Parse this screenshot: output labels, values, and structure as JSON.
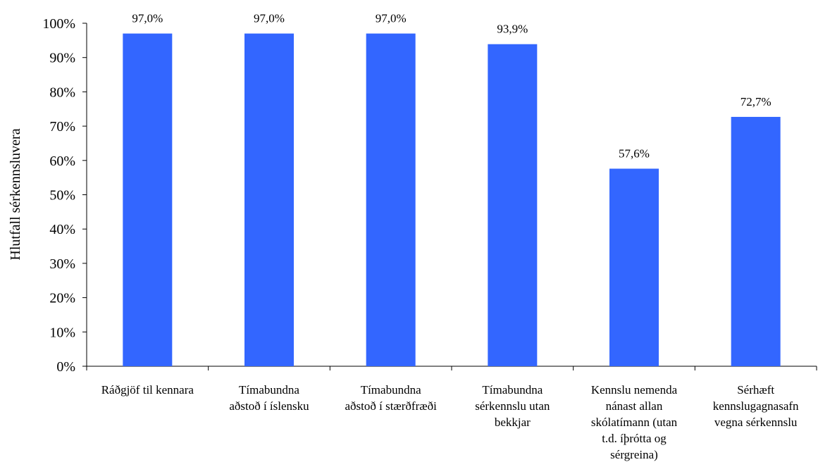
{
  "chart_data": {
    "type": "bar",
    "title": "",
    "xlabel": "",
    "ylabel": "Hlutfall sérkennsluvera",
    "ylim": [
      0,
      100
    ],
    "yticks": [
      "0%",
      "10%",
      "20%",
      "30%",
      "40%",
      "50%",
      "60%",
      "70%",
      "80%",
      "90%",
      "100%"
    ],
    "categories": [
      [
        "Ráðgjöf til kennara"
      ],
      [
        "Tímabundna",
        "aðstoð í íslensku"
      ],
      [
        "Tímabundna",
        "aðstoð í stærðfræði"
      ],
      [
        "Tímabundna",
        "sérkennslu utan",
        "bekkjar"
      ],
      [
        "Kennslu nemenda",
        "nánast allan",
        "skólatímann (utan",
        "t.d. íþrótta og",
        "sérgreina)"
      ],
      [
        "Sérhæft",
        "kennslugagnasafn",
        "vegna sérkennslu"
      ]
    ],
    "values": [
      97.0,
      97.0,
      97.0,
      93.9,
      57.6,
      72.7
    ],
    "data_labels": [
      "97,0%",
      "97,0%",
      "97,0%",
      "93,9%",
      "57,6%",
      "72,7%"
    ],
    "bar_color": "#3366FF",
    "grid": false,
    "legend": "none"
  }
}
